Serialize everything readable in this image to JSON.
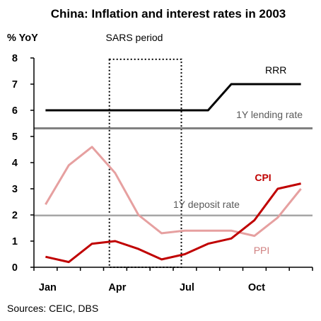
{
  "chart_data": {
    "type": "line",
    "title": "China: Inflation and interest rates in 2003",
    "ylabel": "% YoY",
    "xlabel": "",
    "ylim": [
      0,
      8
    ],
    "y_ticks": [
      "0",
      "1",
      "2",
      "3",
      "4",
      "5",
      "6",
      "7",
      "8"
    ],
    "x_tick_labels": [
      "Jan",
      "Apr",
      "Jul",
      "Oct"
    ],
    "x_tick_months": [
      1,
      4,
      7,
      10
    ],
    "xlim": [
      0.5,
      12.5
    ],
    "grid": false,
    "legend": "none (direct labels)",
    "series": [
      {
        "name": "RRR",
        "color": "#000000",
        "x": [
          1,
          2,
          3,
          4,
          5,
          6,
          7,
          8,
          9,
          10,
          11,
          12
        ],
        "values": [
          6,
          6,
          6,
          6,
          6,
          6,
          6,
          6,
          7,
          7,
          7,
          7
        ]
      },
      {
        "name": "1Y lending rate",
        "color": "#808080",
        "x": [
          0.5,
          12.5
        ],
        "values": [
          5.31,
          5.31
        ]
      },
      {
        "name": "CPI",
        "color": "#c00000",
        "x": [
          1,
          2,
          3,
          4,
          5,
          6,
          7,
          8,
          9,
          10,
          11,
          12
        ],
        "values": [
          0.4,
          0.2,
          0.9,
          1.0,
          0.7,
          0.3,
          0.5,
          0.9,
          1.1,
          1.8,
          3.0,
          3.2
        ]
      },
      {
        "name": "1Y deposit rate",
        "color": "#a6a6a6",
        "x": [
          0.5,
          12.5
        ],
        "values": [
          1.98,
          1.98
        ]
      },
      {
        "name": "PPI",
        "color": "#e6a0a0",
        "x": [
          1,
          2,
          3,
          4,
          5,
          6,
          7,
          8,
          9,
          10,
          11,
          12
        ],
        "values": [
          2.4,
          3.9,
          4.6,
          3.6,
          2.0,
          1.3,
          1.4,
          1.4,
          1.4,
          1.2,
          1.9,
          3.0
        ]
      }
    ],
    "annotations": [
      {
        "text": "SARS period",
        "x_range": [
          3.75,
          6.85
        ]
      }
    ]
  },
  "source": "Sources: CEIC, DBS"
}
